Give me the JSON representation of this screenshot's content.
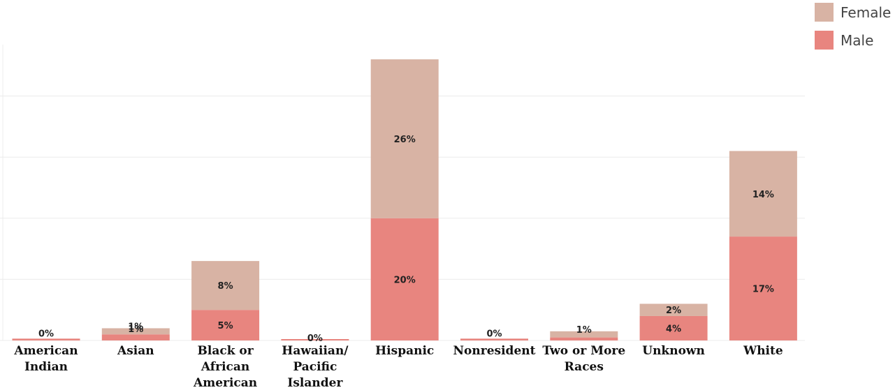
{
  "chart_data": {
    "type": "bar",
    "stacked": true,
    "categories": [
      [
        "American",
        "Indian"
      ],
      [
        "Asian"
      ],
      [
        "Black or",
        "African",
        "American"
      ],
      [
        "Hawaiian/",
        "Pacific",
        "Islander"
      ],
      [
        "Hispanic"
      ],
      [
        "Nonresident"
      ],
      [
        "Two or More",
        "Races"
      ],
      [
        "Unknown"
      ],
      [
        "White"
      ]
    ],
    "series": [
      {
        "name": "Male",
        "color": "#e8857f",
        "values": [
          0.3,
          1.0,
          5.0,
          0.1,
          20.0,
          0.3,
          0.5,
          4.0,
          17.0
        ],
        "labels": [
          "0%",
          "1%",
          "5%",
          "",
          "20%",
          "0%",
          "",
          "4%",
          "17%"
        ]
      },
      {
        "name": "Female",
        "color": "#d8b3a4",
        "values": [
          0.0,
          1.0,
          8.0,
          0.0,
          26.0,
          0.0,
          1.0,
          2.0,
          14.0
        ],
        "labels": [
          "",
          "1%",
          "8%",
          "0%",
          "26%",
          "",
          "1%",
          "2%",
          "14%"
        ]
      }
    ],
    "ylim": [
      0,
      46
    ],
    "gridlines": [
      0,
      10,
      20,
      30,
      40
    ],
    "legend": {
      "position": "top-right",
      "order": [
        "Female",
        "Male"
      ]
    },
    "title": "",
    "xlabel": "",
    "ylabel": ""
  }
}
